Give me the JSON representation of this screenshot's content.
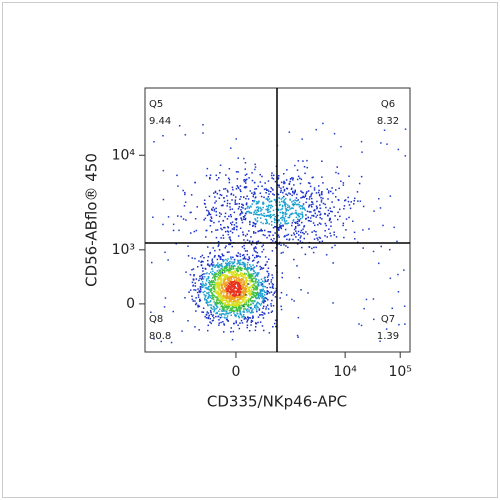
{
  "chart_data": {
    "type": "quadrant-density",
    "xlabel": "CD335/NKp46-APC",
    "ylabel": "CD56-ABflo® 450",
    "xlim": [
      -4660,
      150600
    ],
    "ylim": [
      -846,
      48600
    ],
    "xticks": [
      0,
      {
        "value": 10000,
        "label": "10⁴"
      },
      {
        "value": 100000,
        "label": "10⁵"
      }
    ],
    "yticks": [
      0,
      {
        "value": 1000,
        "label": "10³"
      },
      {
        "value": 10000,
        "label": "10⁴"
      }
    ],
    "gates": {
      "x": 560,
      "y": 1200
    },
    "quadrants": [
      {
        "name": "Q5",
        "value": 9.44,
        "corner": "top-left"
      },
      {
        "name": "Q6",
        "value": 8.32,
        "corner": "top-right"
      },
      {
        "name": "Q7",
        "value": 1.39,
        "corner": "bottom-right"
      },
      {
        "name": "Q8",
        "value": 80.8,
        "corner": "bottom-left"
      }
    ]
  }
}
